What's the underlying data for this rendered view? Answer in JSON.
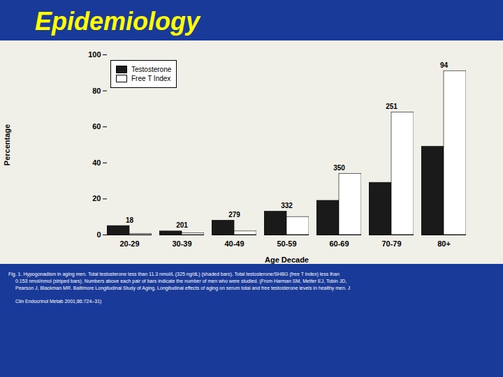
{
  "chart_data": {
    "type": "bar",
    "title": "Epidemiology",
    "categories": [
      "20-29",
      "30-39",
      "40-49",
      "50-59",
      "60-69",
      "70-79",
      "80+"
    ],
    "series": [
      {
        "name": "Testosterone",
        "color": "#1a1a1a",
        "values": [
          5,
          2,
          8,
          13,
          19,
          29,
          49
        ]
      },
      {
        "name": "Free T Index",
        "color": "#ffffff",
        "values": [
          0.5,
          1,
          2,
          10,
          34,
          68,
          91
        ]
      }
    ],
    "n_labels": [
      "18",
      "201",
      "279",
      "332",
      "350",
      "251",
      "94"
    ],
    "xlabel": "Age Decade",
    "ylabel": "Percentage",
    "ylim": [
      0,
      100
    ],
    "yticks": [
      0,
      20,
      40,
      60,
      80,
      100
    ],
    "grid": false,
    "legend": "upper left",
    "caption": [
      "Fig. 1.  Hypogonadism in aging men. Total testosterone less than 11.3 nmol/L (325 ng/dL) (shaded bars). Total testosterone/SHBG (free T index) less than",
      "0.153 nmol/nmol (striped bars). Numbers above each pair of bars indicate the number of men who were studied. (From Harman SM, Metter EJ, Tobin JD,",
      "Pearson J, Blackman MR. Baltimore Longitudinal Study of Aging. Longitudinal effects of aging on serum total and free testosterone levels in healthy men. J",
      "Clin Endocrinol Metab 2001;86:724–31)"
    ]
  }
}
